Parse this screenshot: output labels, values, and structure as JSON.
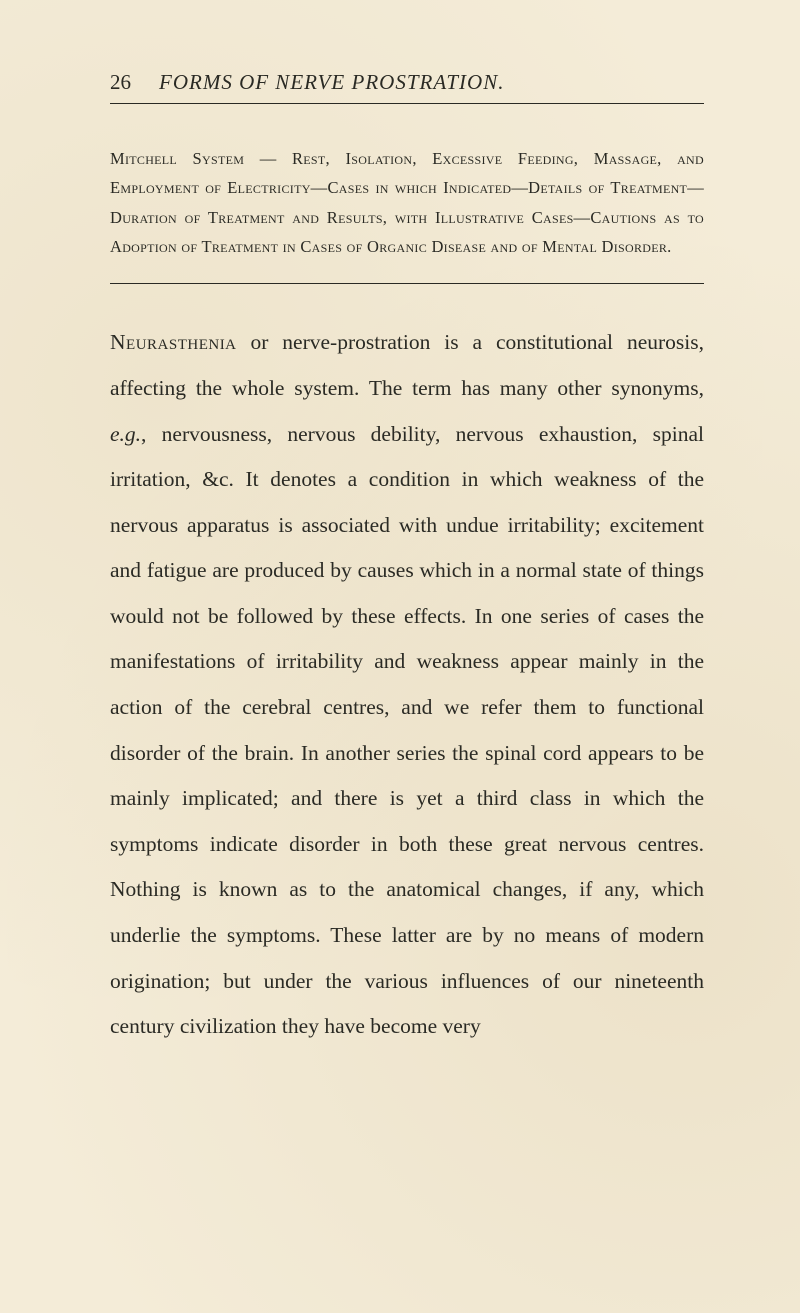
{
  "pageNumber": "26",
  "runningTitle": "FORMS OF NERVE PROSTRATION.",
  "synopsis": "Mitchell System — Rest, Isolation, Excessive Feeding, Massage, and Employment of Electricity—Cases in which Indicated—Details of Treatment—Duration of Treatment and Results, with Illustrative Cases—Cautions as to Adoption of Treatment in Cases of Organic Disease and of Mental Disorder.",
  "body": {
    "lead": "Neurasthenia",
    "segA": " or nerve-prostration is a constitutional neurosis, affecting the whole system. The term has many other synonyms, ",
    "eg": "e.g.",
    "segB": ", nervousness, nervous debility, nervous exhaustion, spinal irritation, &c. It denotes a condition in which weakness of the nervous apparatus is associated with undue irritability; excite­ment and fatigue are produced by causes which in a normal state of things would not be followed by these effects. In one series of cases the manifestations of irritability and weakness appear mainly in the action of the cerebral centres, and we refer them to functional disorder of the brain. In another series the spinal cord appears to be mainly implicated; and there is yet a third class in which the symptoms indicate disorder in both these great nervous centres. Nothing is known as to the anatomical changes, if any, which underlie the symptoms. These latter are by no means of modern origination; but under the various influences of our nineteenth century civilization they have become very"
  }
}
